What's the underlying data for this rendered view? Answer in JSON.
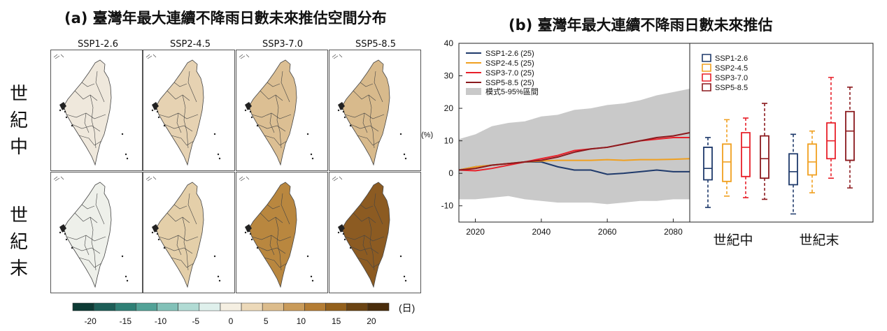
{
  "panel_a": {
    "title": "(a) 臺灣年最大連續不降雨日數未來推估空間分布",
    "columns": [
      "SSP1-2.6",
      "SSP2-4.5",
      "SSP3-7.0",
      "SSP5-8.5"
    ],
    "rows": [
      "世紀中",
      "世紀末"
    ],
    "map_fill": [
      [
        "#efe8dc",
        "#e6d2b2",
        "#dcbf93",
        "#d8ba8c"
      ],
      [
        "#eef0ea",
        "#e4cfa9",
        "#b9873f",
        "#8c5b22"
      ]
    ],
    "colorbar": {
      "colors": [
        "#0d3b35",
        "#1d5e57",
        "#2f8076",
        "#52a297",
        "#82c1b8",
        "#b1dbd4",
        "#dff0ec",
        "#f5efe2",
        "#ecd9b9",
        "#dcbc8c",
        "#c99b5a",
        "#b47d34",
        "#93601c",
        "#6b4413",
        "#4a2d0c"
      ],
      "ticks": [
        "-20",
        "-15",
        "-10",
        "-5",
        "0",
        "5",
        "10",
        "15",
        "20"
      ],
      "unit": "(日)"
    }
  },
  "panel_b": {
    "title": "(b) 臺灣年最大連續不降雨日數未來推估",
    "ylabel": "(%)",
    "bottom_labels": [
      "世紀中",
      "世紀末"
    ]
  },
  "chart_data": [
    {
      "type": "line",
      "ylabel": "(%)",
      "xlim": [
        2015,
        2085
      ],
      "ylim": [
        -15,
        40
      ],
      "xticks": [
        2020,
        2040,
        2060,
        2080
      ],
      "yticks": [
        -10,
        0,
        10,
        20,
        30,
        40
      ],
      "legend_position": "top-left",
      "band": {
        "name": "模式5-95%區間",
        "color": "#c9c9c9",
        "x": [
          2015,
          2020,
          2025,
          2030,
          2035,
          2040,
          2045,
          2050,
          2055,
          2060,
          2065,
          2070,
          2075,
          2080,
          2085
        ],
        "upper": [
          10.5,
          12,
          14.5,
          15.5,
          16,
          17.5,
          18,
          19.5,
          20,
          21,
          21.5,
          22.5,
          24,
          25,
          26
        ],
        "lower": [
          -8,
          -8,
          -7.5,
          -7,
          -8,
          -8.5,
          -9,
          -9,
          -9,
          -9.5,
          -9,
          -8.5,
          -8.5,
          -8,
          -8
        ]
      },
      "series": [
        {
          "name": "SSP1-2.6 (25)",
          "color": "#1f3a6b",
          "x": [
            2015,
            2020,
            2025,
            2030,
            2035,
            2040,
            2045,
            2050,
            2055,
            2060,
            2065,
            2070,
            2075,
            2080,
            2085
          ],
          "values": [
            1,
            2,
            2.5,
            3,
            3.5,
            3.5,
            2,
            1,
            1,
            -0.3,
            0,
            0.5,
            1,
            0.5,
            0.5
          ]
        },
        {
          "name": "SSP2-4.5 (25)",
          "color": "#f0a020",
          "x": [
            2015,
            2020,
            2025,
            2030,
            2035,
            2040,
            2045,
            2050,
            2055,
            2060,
            2065,
            2070,
            2075,
            2080,
            2085
          ],
          "values": [
            1,
            2,
            2.5,
            3,
            3.5,
            3.8,
            4,
            4,
            4,
            4.2,
            4,
            4.2,
            4.2,
            4.3,
            4.5
          ]
        },
        {
          "name": "SSP3-7.0 (25)",
          "color": "#e8202a",
          "x": [
            2015,
            2020,
            2025,
            2030,
            2035,
            2040,
            2045,
            2050,
            2055,
            2060,
            2065,
            2070,
            2075,
            2080,
            2085
          ],
          "values": [
            1,
            0.8,
            1.5,
            2.5,
            3.5,
            4.5,
            5.5,
            7,
            7.5,
            8,
            9,
            10,
            10.5,
            11,
            11
          ]
        },
        {
          "name": "SSP5-8.5 (25)",
          "color": "#8b1a1e",
          "x": [
            2015,
            2020,
            2025,
            2030,
            2035,
            2040,
            2045,
            2050,
            2055,
            2060,
            2065,
            2070,
            2075,
            2080,
            2085
          ],
          "values": [
            1,
            1.5,
            2.5,
            3,
            3.5,
            4,
            5,
            6.5,
            7.5,
            8,
            9,
            10,
            11,
            11.5,
            12.5
          ]
        }
      ]
    },
    {
      "type": "box",
      "categories": [
        "世紀中",
        "世紀末"
      ],
      "legend_position": "top",
      "series": [
        {
          "name": "SSP1-2.6",
          "color": "#1f3a6b",
          "boxes": [
            {
              "min": -10.5,
              "q1": -2,
              "median": 1.5,
              "q3": 8,
              "max": 11
            },
            {
              "min": -12.5,
              "q1": -3.5,
              "median": 0.5,
              "q3": 6,
              "max": 12
            }
          ]
        },
        {
          "name": "SSP2-4.5",
          "color": "#f0a020",
          "boxes": [
            {
              "min": -7,
              "q1": -2.5,
              "median": 3.5,
              "q3": 9,
              "max": 16.5
            },
            {
              "min": -6,
              "q1": -0.5,
              "median": 3.5,
              "q3": 9,
              "max": 13
            }
          ]
        },
        {
          "name": "SSP3-7.0",
          "color": "#e8202a",
          "boxes": [
            {
              "min": -7.5,
              "q1": -1,
              "median": 8,
              "q3": 12.5,
              "max": 17
            },
            {
              "min": -1.5,
              "q1": 4.5,
              "median": 10,
              "q3": 15.5,
              "max": 29.5
            }
          ]
        },
        {
          "name": "SSP5-8.5",
          "color": "#8b1a1e",
          "boxes": [
            {
              "min": -8,
              "q1": -1.5,
              "median": 4.5,
              "q3": 11.5,
              "max": 21.5
            },
            {
              "min": -4.5,
              "q1": 4,
              "median": 13,
              "q3": 19,
              "max": 26.5
            }
          ]
        }
      ]
    }
  ]
}
